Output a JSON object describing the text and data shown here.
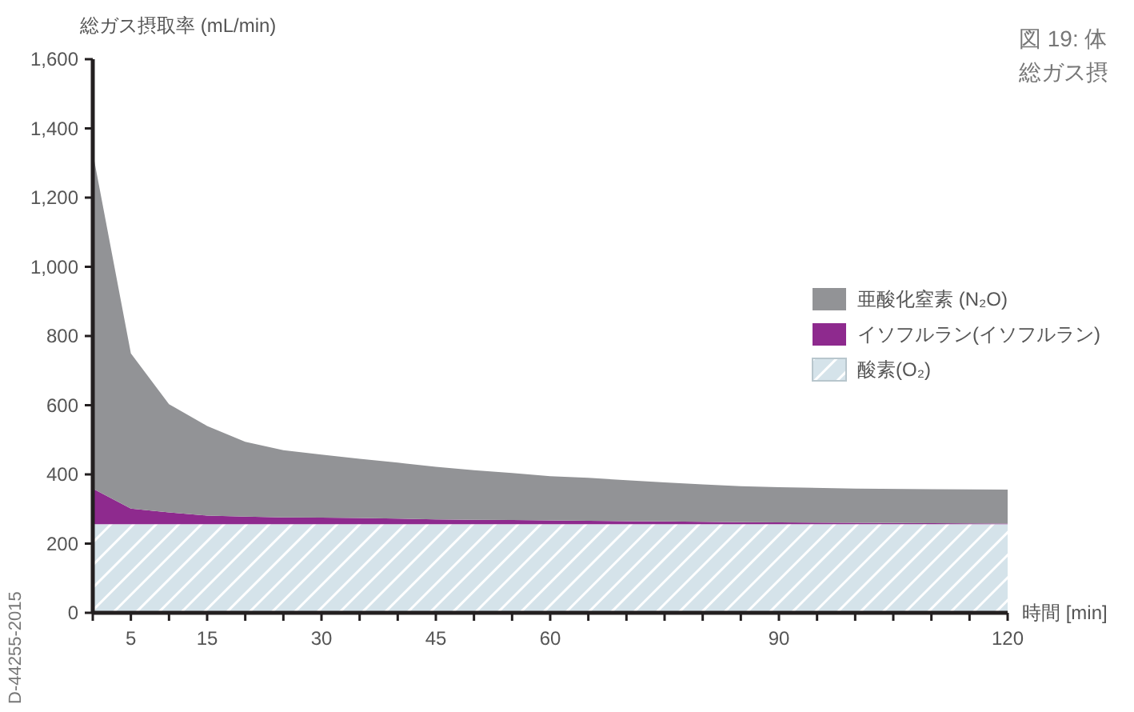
{
  "chart_data": {
    "type": "area",
    "stacked": true,
    "title": "図 19: 体",
    "subtitle": "総ガス摂",
    "ylabel": "総ガス摂取率 (mL/min)",
    "xlabel": "時間 [min]",
    "annotations": [
      "D-44255-2015"
    ],
    "x": [
      0,
      5,
      10,
      15,
      20,
      25,
      30,
      35,
      40,
      45,
      50,
      55,
      60,
      65,
      70,
      75,
      80,
      85,
      90,
      100,
      110,
      120
    ],
    "series": [
      {
        "name": "酸素(O₂)",
        "color": "#d5e3ea",
        "values": [
          256,
          256,
          256,
          256,
          256,
          256,
          256,
          256,
          256,
          256,
          256,
          256,
          256,
          256,
          256,
          256,
          256,
          256,
          256,
          256,
          256,
          256
        ]
      },
      {
        "name": "イソフルラン(イソフルラン)",
        "color": "#8e2a8e",
        "values": [
          103,
          45,
          34,
          25,
          22,
          20,
          19,
          18,
          16,
          14,
          13,
          12,
          11,
          10,
          9,
          8,
          7,
          6,
          5,
          4,
          3,
          2
        ]
      },
      {
        "name": "亜酸化窒素 (N₂O)",
        "color": "#929396",
        "values": [
          971,
          449,
          313,
          259,
          216,
          194,
          182,
          171,
          162,
          152,
          143,
          136,
          128,
          124,
          118,
          113,
          108,
          104,
          102,
          99,
          98,
          98
        ]
      }
    ],
    "xlim": [
      0,
      120
    ],
    "xticks": [
      {
        "value": 0,
        "label": null
      },
      5,
      {
        "value": 10,
        "label": null
      },
      15,
      {
        "value": 20,
        "label": null
      },
      {
        "value": 25,
        "label": null
      },
      30,
      {
        "value": 35,
        "label": null
      },
      {
        "value": 40,
        "label": null
      },
      45,
      {
        "value": 50,
        "label": null
      },
      {
        "value": 55,
        "label": null
      },
      60,
      {
        "value": 65,
        "label": null
      },
      {
        "value": 70,
        "label": null
      },
      {
        "value": 75,
        "label": null
      },
      {
        "value": 80,
        "label": null
      },
      {
        "value": 85,
        "label": null
      },
      90,
      {
        "value": 95,
        "label": null
      },
      {
        "value": 100,
        "label": null
      },
      {
        "value": 105,
        "label": null
      },
      {
        "value": 110,
        "label": null
      },
      {
        "value": 115,
        "label": null
      },
      120
    ],
    "ylim": [
      0,
      1600
    ],
    "yticks": [
      0,
      200,
      400,
      600,
      800,
      {
        "value": 1000,
        "label": "1,000"
      },
      {
        "value": 1200,
        "label": "1,200"
      },
      {
        "value": 1400,
        "label": "1,400"
      },
      {
        "value": 1600,
        "label": "1,600"
      }
    ],
    "legend": "right",
    "grid": false
  }
}
